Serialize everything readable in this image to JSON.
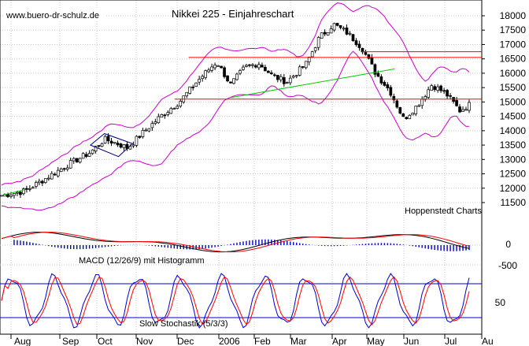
{
  "chart_data": [
    {
      "type": "candlestick",
      "title": "Nikkei 225 - Einjahreschart",
      "watermark": "www.buero-dr-schulz.de",
      "source": "Hoppenstedt Charts",
      "ylim": [
        11000,
        18200
      ],
      "yticks": [
        "11500",
        "12000",
        "12500",
        "13000",
        "13500",
        "14000",
        "14500",
        "15000",
        "15500",
        "16000",
        "16500",
        "17000",
        "17500",
        "18000"
      ],
      "x_months": [
        "Aug",
        "Sep",
        "Oct",
        "Nov",
        "Dec",
        "2006",
        "Feb",
        "Mar",
        "Apr",
        "May",
        "Jun",
        "Jul",
        "Au"
      ],
      "close_approx": [
        {
          "x": 0.0,
          "y": 11750
        },
        {
          "x": 0.05,
          "y": 11900
        },
        {
          "x": 0.09,
          "y": 12300
        },
        {
          "x": 0.14,
          "y": 12800
        },
        {
          "x": 0.19,
          "y": 13250
        },
        {
          "x": 0.22,
          "y": 13700
        },
        {
          "x": 0.24,
          "y": 13600
        },
        {
          "x": 0.27,
          "y": 13400
        },
        {
          "x": 0.3,
          "y": 13900
        },
        {
          "x": 0.34,
          "y": 14500
        },
        {
          "x": 0.38,
          "y": 15000
        },
        {
          "x": 0.42,
          "y": 15750
        },
        {
          "x": 0.46,
          "y": 16400
        },
        {
          "x": 0.49,
          "y": 15600
        },
        {
          "x": 0.52,
          "y": 16200
        },
        {
          "x": 0.55,
          "y": 16350
        },
        {
          "x": 0.58,
          "y": 15900
        },
        {
          "x": 0.61,
          "y": 15700
        },
        {
          "x": 0.65,
          "y": 16300
        },
        {
          "x": 0.68,
          "y": 17250
        },
        {
          "x": 0.71,
          "y": 17700
        },
        {
          "x": 0.74,
          "y": 17400
        },
        {
          "x": 0.77,
          "y": 16900
        },
        {
          "x": 0.8,
          "y": 16000
        },
        {
          "x": 0.83,
          "y": 15400
        },
        {
          "x": 0.86,
          "y": 14400
        },
        {
          "x": 0.89,
          "y": 14900
        },
        {
          "x": 0.92,
          "y": 15600
        },
        {
          "x": 0.95,
          "y": 15300
        },
        {
          "x": 0.98,
          "y": 14700
        },
        {
          "x": 1.0,
          "y": 14900
        }
      ],
      "horizontal_lines": [
        16750,
        16550,
        15100
      ],
      "colors": {
        "candle": "#000000",
        "bands": "#cc00cc",
        "resistance": "#ff0000",
        "trend": "#00cc00",
        "triangle": "#000080"
      }
    },
    {
      "type": "line",
      "title": "MACD (12/26/9) mit Histogramm",
      "yticks": [
        "0",
        "-500"
      ],
      "colors": {
        "macd": "#000000",
        "signal": "#ff0000",
        "histogram": "#0000cc"
      }
    },
    {
      "type": "line",
      "title": "Slow Stochastik (5/3/3)",
      "yticks": [
        "50"
      ],
      "levels": [
        80,
        20
      ],
      "colors": {
        "k": "#0000cc",
        "d": "#ff0000",
        "levels": "#0000cc"
      }
    }
  ]
}
